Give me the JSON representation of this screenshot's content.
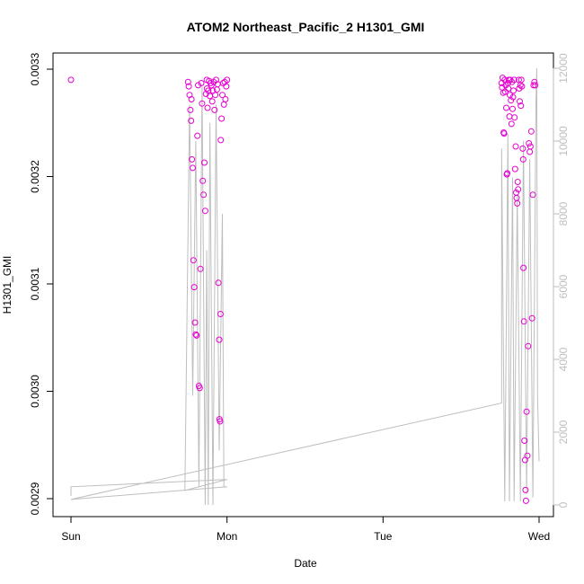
{
  "chart_data": {
    "type": "scatter",
    "title": "ATOM2 Northeast_Pacific_2 H1301_GMI",
    "xlabel": "Date",
    "ylabel": "H1301_GMI",
    "x_ticks": [
      "Sun",
      "Mon",
      "Tue",
      "Wed"
    ],
    "y_ticks": [
      "0.0029",
      "0.0030",
      "0.0031",
      "0.0032",
      "0.0033"
    ],
    "y2_ticks": [
      "0",
      "2000",
      "4000",
      "6000",
      "8000",
      "10000",
      "12000"
    ],
    "xlim_days": [
      0,
      3
    ],
    "ylim": [
      0.0029,
      0.0033
    ],
    "y2lim": [
      0,
      12000
    ],
    "colors": {
      "points": "#e600d0",
      "altitude_line": "#bebebe",
      "right_axis": "#bebebe",
      "frame": "#000000"
    },
    "series": [
      {
        "marker": "open-circle",
        "points": [
          [
            0.0,
            0.00329
          ],
          [
            0.75,
            0.003288
          ],
          [
            0.755,
            0.003284
          ],
          [
            0.76,
            0.003276
          ],
          [
            0.765,
            0.003262
          ],
          [
            0.77,
            0.003252
          ],
          [
            0.772,
            0.003272
          ],
          [
            0.775,
            0.003216
          ],
          [
            0.78,
            0.003208
          ],
          [
            0.785,
            0.003122
          ],
          [
            0.79,
            0.003097
          ],
          [
            0.795,
            0.003064
          ],
          [
            0.8,
            0.003053
          ],
          [
            0.805,
            0.003052
          ],
          [
            0.81,
            0.003238
          ],
          [
            0.815,
            0.003285
          ],
          [
            0.82,
            0.003005
          ],
          [
            0.825,
            0.003003
          ],
          [
            0.83,
            0.003114
          ],
          [
            0.835,
            0.003287
          ],
          [
            0.84,
            0.003268
          ],
          [
            0.845,
            0.003196
          ],
          [
            0.85,
            0.003183
          ],
          [
            0.855,
            0.003213
          ],
          [
            0.86,
            0.003168
          ],
          [
            0.865,
            0.003277
          ],
          [
            0.87,
            0.00329
          ],
          [
            0.872,
            0.003282
          ],
          [
            0.875,
            0.003264
          ],
          [
            0.88,
            0.00328
          ],
          [
            0.885,
            0.003289
          ],
          [
            0.89,
            0.003275
          ],
          [
            0.895,
            0.003287
          ],
          [
            0.9,
            0.003285
          ],
          [
            0.905,
            0.00327
          ],
          [
            0.91,
            0.00328
          ],
          [
            0.915,
            0.003288
          ],
          [
            0.92,
            0.003262
          ],
          [
            0.925,
            0.003276
          ],
          [
            0.93,
            0.00329
          ],
          [
            0.935,
            0.003281
          ],
          [
            0.94,
            0.003286
          ],
          [
            0.945,
            0.003101
          ],
          [
            0.95,
            0.003048
          ],
          [
            0.952,
            0.002974
          ],
          [
            0.955,
            0.002972
          ],
          [
            0.958,
            0.003072
          ],
          [
            0.96,
            0.003234
          ],
          [
            0.965,
            0.003254
          ],
          [
            0.97,
            0.003276
          ],
          [
            0.975,
            0.003287
          ],
          [
            0.98,
            0.003267
          ],
          [
            0.985,
            0.003288
          ],
          [
            0.99,
            0.003272
          ],
          [
            0.995,
            0.003284
          ],
          [
            1.0,
            0.00329
          ],
          [
            2.76,
            0.003287
          ],
          [
            2.763,
            0.003283
          ],
          [
            2.766,
            0.003292
          ],
          [
            2.77,
            0.003278
          ],
          [
            2.773,
            0.003241
          ],
          [
            2.776,
            0.00324
          ],
          [
            2.78,
            0.00329
          ],
          [
            2.783,
            0.003279
          ],
          [
            2.786,
            0.003285
          ],
          [
            2.79,
            0.003264
          ],
          [
            2.793,
            0.003202
          ],
          [
            2.796,
            0.003203
          ],
          [
            2.8,
            0.003287
          ],
          [
            2.803,
            0.003282
          ],
          [
            2.806,
            0.00329
          ],
          [
            2.81,
            0.003256
          ],
          [
            2.813,
            0.003276
          ],
          [
            2.816,
            0.00329
          ],
          [
            2.82,
            0.003271
          ],
          [
            2.823,
            0.003249
          ],
          [
            2.826,
            0.003288
          ],
          [
            2.83,
            0.003263
          ],
          [
            2.833,
            0.003274
          ],
          [
            2.836,
            0.00328
          ],
          [
            2.84,
            0.00329
          ],
          [
            2.843,
            0.003255
          ],
          [
            2.846,
            0.003207
          ],
          [
            2.85,
            0.003228
          ],
          [
            2.853,
            0.003185
          ],
          [
            2.856,
            0.00318
          ],
          [
            2.86,
            0.003175
          ],
          [
            2.863,
            0.003195
          ],
          [
            2.866,
            0.003188
          ],
          [
            2.87,
            0.00329
          ],
          [
            2.873,
            0.003282
          ],
          [
            2.876,
            0.00327
          ],
          [
            2.88,
            0.003285
          ],
          [
            2.883,
            0.003266
          ],
          [
            2.886,
            0.00329
          ],
          [
            2.89,
            0.003284
          ],
          [
            2.895,
            0.003226
          ],
          [
            2.898,
            0.003216
          ],
          [
            2.9,
            0.003115
          ],
          [
            2.903,
            0.003065
          ],
          [
            2.906,
            0.002954
          ],
          [
            2.91,
            0.002936
          ],
          [
            2.913,
            0.002908
          ],
          [
            2.916,
            0.002898
          ],
          [
            2.92,
            0.002981
          ],
          [
            2.925,
            0.00294
          ],
          [
            2.93,
            0.003042
          ],
          [
            2.935,
            0.003231
          ],
          [
            2.94,
            0.003223
          ],
          [
            2.945,
            0.003228
          ],
          [
            2.95,
            0.003242
          ],
          [
            2.955,
            0.003068
          ],
          [
            2.96,
            0.003183
          ],
          [
            2.965,
            0.003285
          ],
          [
            2.97,
            0.003288
          ],
          [
            2.975,
            0.003285
          ]
        ]
      },
      {
        "name_hint": "altitude",
        "line": [
          [
            0.0,
            250
          ],
          [
            0.0,
            500
          ],
          [
            1.0,
            700
          ],
          [
            0.73,
            400
          ],
          [
            0.76,
            11000
          ],
          [
            0.78,
            3000
          ],
          [
            0.8,
            10000
          ],
          [
            0.82,
            500
          ],
          [
            0.84,
            11500
          ],
          [
            0.86,
            0
          ],
          [
            0.87,
            7000
          ],
          [
            0.88,
            0
          ],
          [
            0.89,
            10500
          ],
          [
            0.91,
            0
          ],
          [
            0.93,
            11000
          ],
          [
            0.95,
            1500
          ],
          [
            0.97,
            8000
          ],
          [
            0.98,
            500
          ],
          [
            1.0,
            500
          ],
          [
            0.0,
            150
          ],
          [
            2.76,
            2800
          ],
          [
            2.76,
            9800
          ],
          [
            2.78,
            100
          ],
          [
            2.8,
            10200
          ],
          [
            2.81,
            100
          ],
          [
            2.83,
            9000
          ],
          [
            2.84,
            100
          ],
          [
            2.86,
            8500
          ],
          [
            2.88,
            100
          ],
          [
            2.9,
            10000
          ],
          [
            2.92,
            300
          ],
          [
            2.94,
            9500
          ],
          [
            2.96,
            200
          ],
          [
            2.98,
            11000
          ],
          [
            2.985,
            12000
          ],
          [
            2.99,
            3000
          ],
          [
            3.0,
            1200
          ]
        ]
      }
    ]
  }
}
